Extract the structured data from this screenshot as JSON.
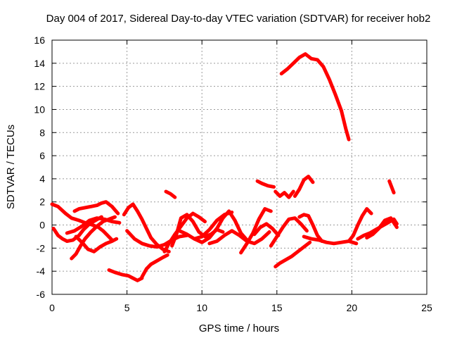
{
  "chart_data": {
    "type": "line",
    "title": "Day 004 of 2017, Sidereal Day-to-day VTEC variation (SDTVAR) for receiver hob2",
    "xlabel": "GPS time / hours",
    "ylabel": "SDTVAR / TECUs",
    "xlim": [
      0,
      25
    ],
    "ylim": [
      -6,
      16
    ],
    "xticks": [
      "0",
      "5",
      "10",
      "15",
      "20",
      "25"
    ],
    "yticks": [
      "-6",
      "-4",
      "-2",
      "0",
      "2",
      "4",
      "6",
      "8",
      "10",
      "12",
      "14",
      "16"
    ],
    "xtick_values": [
      0,
      5,
      10,
      15,
      20,
      25
    ],
    "ytick_values": [
      -6,
      -4,
      -2,
      0,
      2,
      4,
      6,
      8,
      10,
      12,
      14,
      16
    ],
    "grid": true,
    "color": "#ff0000",
    "series": [
      {
        "name": "trace-1",
        "x": [
          0,
          0.4,
          0.9,
          1.3,
          1.8,
          2.2,
          2.7,
          3.1,
          3.4,
          3.7,
          4.0
        ],
        "y": [
          1.8,
          1.6,
          1.0,
          0.6,
          0.4,
          0.2,
          0.0,
          -0.2,
          -0.5,
          -0.9,
          -1.3
        ]
      },
      {
        "name": "trace-2",
        "x": [
          0.1,
          0.4,
          0.7,
          1.0,
          1.4,
          1.8,
          2.1,
          2.5,
          2.9,
          3.3
        ],
        "y": [
          -0.3,
          -0.9,
          -1.2,
          -1.4,
          -1.3,
          -0.9,
          -0.4,
          0.1,
          0.4,
          0.7
        ]
      },
      {
        "name": "trace-3",
        "x": [
          1.3,
          1.6,
          1.9,
          2.2,
          2.6,
          3.0,
          3.4,
          3.8,
          4.2
        ],
        "y": [
          -2.9,
          -2.5,
          -1.8,
          -1.2,
          -0.6,
          -0.1,
          0.3,
          0.5,
          0.7
        ]
      },
      {
        "name": "trace-4",
        "x": [
          1.5,
          1.8,
          2.2,
          2.6,
          3.0,
          3.3,
          3.6,
          4.0,
          4.4
        ],
        "y": [
          1.2,
          1.4,
          1.5,
          1.6,
          1.7,
          1.9,
          2.0,
          1.6,
          1.0
        ]
      },
      {
        "name": "trace-5",
        "x": [
          1.6,
          2.0,
          2.4,
          2.8,
          3.2,
          3.6,
          4.0,
          4.3
        ],
        "y": [
          -1.0,
          -1.5,
          -2.1,
          -2.3,
          -1.9,
          -1.6,
          -1.4,
          -1.2
        ]
      },
      {
        "name": "trace-6",
        "x": [
          1.0,
          1.5,
          2.0,
          2.5,
          3.0,
          3.5,
          4.0,
          4.5
        ],
        "y": [
          -0.7,
          -0.5,
          -0.1,
          0.4,
          0.6,
          0.5,
          0.3,
          0.2
        ]
      },
      {
        "name": "trace-7",
        "x": [
          3.8,
          4.2,
          4.7,
          5.1,
          5.4,
          5.7,
          6.0
        ],
        "y": [
          -3.9,
          -4.1,
          -4.3,
          -4.4,
          -4.6,
          -4.8,
          -4.6
        ]
      },
      {
        "name": "trace-8",
        "x": [
          6.0,
          6.3,
          6.6,
          7.0,
          7.4,
          7.7
        ],
        "y": [
          -4.5,
          -3.8,
          -3.4,
          -3.1,
          -2.8,
          -2.6
        ]
      },
      {
        "name": "trace-9",
        "x": [
          4.8,
          5.1,
          5.4,
          5.7,
          6.0,
          6.3,
          6.6,
          7.0,
          7.4,
          7.8
        ],
        "y": [
          0.9,
          1.5,
          1.8,
          1.2,
          0.5,
          -0.3,
          -1.1,
          -1.7,
          -2.1,
          -2.3
        ]
      },
      {
        "name": "trace-10",
        "x": [
          5.0,
          5.5,
          6.0,
          6.5,
          7.0,
          7.5,
          8.0,
          8.5,
          9.0
        ],
        "y": [
          -0.5,
          -1.2,
          -1.6,
          -1.8,
          -1.9,
          -1.7,
          -1.3,
          -1.0,
          -0.9
        ]
      },
      {
        "name": "trace-11",
        "x": [
          7.5,
          7.8,
          8.2,
          8.6,
          9.0,
          9.4,
          9.8,
          10.2
        ],
        "y": [
          -2.3,
          -1.6,
          -0.8,
          -0.1,
          0.6,
          1.0,
          0.7,
          0.3
        ]
      },
      {
        "name": "trace-12",
        "x": [
          7.6,
          7.9,
          8.2
        ],
        "y": [
          2.9,
          2.7,
          2.4
        ]
      },
      {
        "name": "trace-13",
        "x": [
          8.0,
          8.3,
          8.6,
          9.0,
          9.4,
          9.8,
          10.2,
          10.6,
          11.0,
          11.4
        ],
        "y": [
          -1.8,
          -0.8,
          0.6,
          0.9,
          0.3,
          -0.6,
          -1.0,
          -0.8,
          -0.4,
          -0.6
        ]
      },
      {
        "name": "trace-14",
        "x": [
          8.5,
          9.0,
          9.5,
          10.0,
          10.5,
          11.0,
          11.5,
          12.0
        ],
        "y": [
          -0.5,
          -0.8,
          -1.2,
          -1.0,
          -0.4,
          0.4,
          0.9,
          1.1
        ]
      },
      {
        "name": "trace-15",
        "x": [
          9.5,
          10.0,
          10.5,
          11.0,
          11.4,
          11.8,
          12.2,
          12.6,
          13.0
        ],
        "y": [
          -1.2,
          -1.5,
          -1.1,
          -0.3,
          0.6,
          1.2,
          0.4,
          -0.7,
          -1.3
        ]
      },
      {
        "name": "trace-16",
        "x": [
          10.5,
          11.0,
          11.5,
          12.0,
          12.5,
          13.0,
          13.5,
          14.0,
          14.5
        ],
        "y": [
          -1.6,
          -1.4,
          -0.9,
          -0.5,
          -0.9,
          -1.4,
          -1.6,
          -1.2,
          -0.6
        ]
      },
      {
        "name": "trace-17",
        "x": [
          12.6,
          13.0,
          13.4,
          13.8,
          14.2,
          14.6
        ],
        "y": [
          -2.4,
          -1.6,
          -0.7,
          0.5,
          1.4,
          1.2
        ]
      },
      {
        "name": "trace-18",
        "x": [
          13.7,
          14.0,
          14.4,
          14.8
        ],
        "y": [
          3.8,
          3.6,
          3.4,
          3.3
        ]
      },
      {
        "name": "trace-19",
        "x": [
          13.5,
          13.9,
          14.3,
          14.7,
          15.1
        ],
        "y": [
          -0.8,
          -0.2,
          0.1,
          -0.3,
          -0.9
        ]
      },
      {
        "name": "trace-20",
        "x": [
          14.9,
          15.2,
          15.5,
          15.8,
          16.1
        ],
        "y": [
          2.9,
          2.5,
          2.8,
          2.4,
          2.9
        ]
      },
      {
        "name": "trace-21",
        "x": [
          16.2,
          16.5,
          16.8,
          17.1,
          17.4
        ],
        "y": [
          2.5,
          3.1,
          3.9,
          4.2,
          3.7
        ]
      },
      {
        "name": "trace-22",
        "x": [
          15.3,
          15.7,
          16.1,
          16.5,
          16.9,
          17.3,
          17.7,
          18.1,
          18.5,
          18.9,
          19.3,
          19.6,
          19.8
        ],
        "y": [
          13.1,
          13.5,
          14.0,
          14.5,
          14.8,
          14.4,
          14.3,
          13.7,
          12.6,
          11.3,
          9.9,
          8.3,
          7.4
        ]
      },
      {
        "name": "trace-23",
        "x": [
          14.9,
          15.2,
          15.6,
          16.0,
          16.4,
          16.8,
          17.2
        ],
        "y": [
          -3.6,
          -3.3,
          -3.0,
          -2.7,
          -2.3,
          -1.9,
          -1.5
        ]
      },
      {
        "name": "trace-24",
        "x": [
          14.6,
          15.0,
          15.4,
          15.8,
          16.2,
          16.6,
          17.0
        ],
        "y": [
          -1.8,
          -1.0,
          -0.2,
          0.5,
          0.6,
          0.1,
          -0.5
        ]
      },
      {
        "name": "trace-25",
        "x": [
          16.5,
          16.8,
          17.1,
          17.4,
          17.7,
          18.0
        ],
        "y": [
          0.7,
          0.9,
          0.8,
          0.0,
          -0.9,
          -1.4
        ]
      },
      {
        "name": "trace-26",
        "x": [
          16.8,
          17.3,
          17.8,
          18.3,
          18.8,
          19.3,
          19.8,
          20.3
        ],
        "y": [
          -1.0,
          -1.2,
          -1.3,
          -1.5,
          -1.6,
          -1.5,
          -1.4,
          -1.6
        ]
      },
      {
        "name": "trace-27",
        "x": [
          19.8,
          20.1,
          20.4,
          20.7,
          21.0,
          21.3
        ],
        "y": [
          -1.4,
          -0.9,
          0.0,
          0.8,
          1.4,
          1.0
        ]
      },
      {
        "name": "trace-28",
        "x": [
          20.4,
          20.8,
          21.2,
          21.6,
          22.0,
          22.4,
          22.8,
          23.0
        ],
        "y": [
          -1.2,
          -0.9,
          -0.7,
          -0.4,
          -0.1,
          0.2,
          0.5,
          0.1
        ]
      },
      {
        "name": "trace-29",
        "x": [
          21.0,
          21.4,
          21.8,
          22.2,
          22.6,
          23.0
        ],
        "y": [
          -1.1,
          -0.8,
          -0.3,
          0.4,
          0.6,
          -0.2
        ]
      },
      {
        "name": "trace-30",
        "x": [
          22.5,
          22.8
        ],
        "y": [
          3.8,
          2.8
        ]
      }
    ]
  }
}
